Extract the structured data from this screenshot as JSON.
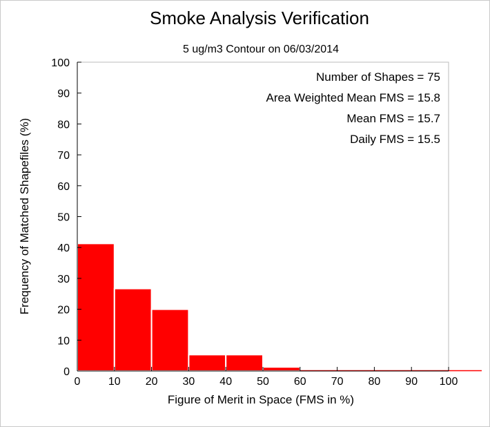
{
  "chart_data": {
    "type": "bar",
    "title": "Smoke Analysis Verification",
    "subtitle": "5 ug/m3 Contour on 06/03/2014",
    "xlabel": "Figure of Merit in Space (FMS in %)",
    "ylabel": "Frequency of Matched Shapefiles (%)",
    "xlim": [
      0,
      100
    ],
    "ylim": [
      0,
      100
    ],
    "xticks": [
      "0",
      "10",
      "20",
      "30",
      "40",
      "50",
      "60",
      "70",
      "80",
      "90",
      "100"
    ],
    "yticks": [
      "0",
      "10",
      "20",
      "30",
      "40",
      "50",
      "60",
      "70",
      "80",
      "90",
      "100"
    ],
    "bins": [
      {
        "start": 0,
        "end": 10,
        "value": 41.3
      },
      {
        "start": 10,
        "end": 20,
        "value": 26.7
      },
      {
        "start": 20,
        "end": 30,
        "value": 20.0
      },
      {
        "start": 30,
        "end": 40,
        "value": 5.3
      },
      {
        "start": 40,
        "end": 50,
        "value": 5.3
      },
      {
        "start": 50,
        "end": 60,
        "value": 1.3
      },
      {
        "start": 60,
        "end": 70,
        "value": 0
      },
      {
        "start": 70,
        "end": 80,
        "value": 0
      },
      {
        "start": 80,
        "end": 90,
        "value": 0
      },
      {
        "start": 90,
        "end": 100,
        "value": 0
      }
    ],
    "bar_color": "#ff0000",
    "grid": false,
    "annotations": [
      "Number of Shapes = 75",
      "Area Weighted Mean FMS = 15.8",
      "Mean FMS = 15.7",
      "Daily FMS = 15.5"
    ]
  }
}
